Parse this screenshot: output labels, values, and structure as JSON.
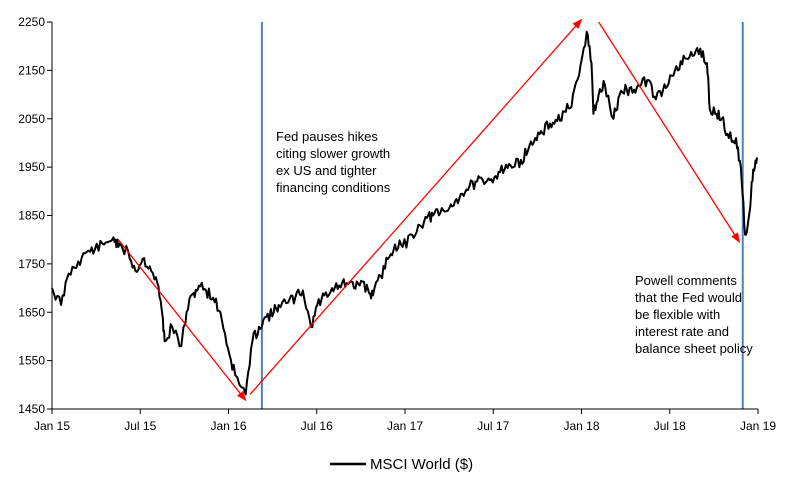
{
  "chart_data": {
    "type": "line",
    "title": "",
    "xlabel": "",
    "ylabel": "",
    "ylim": [
      1450,
      2250
    ],
    "yticks": [
      1450,
      1550,
      1650,
      1750,
      1850,
      1950,
      2050,
      2150,
      2250
    ],
    "xticks": [
      "Jan 15",
      "Jul 15",
      "Jan 16",
      "Jul 16",
      "Jan 17",
      "Jul 17",
      "Jan 18",
      "Jul 18",
      "Jan 19"
    ],
    "x_range": [
      "2015-01-01",
      "2019-01-20"
    ],
    "grid": false,
    "legend_position": "bottom-center",
    "series": [
      {
        "name": "MSCI World ($)",
        "color": "#000000",
        "x": [
          "2015-01-01",
          "2015-01-20",
          "2015-02-05",
          "2015-02-25",
          "2015-03-15",
          "2015-04-01",
          "2015-04-20",
          "2015-05-10",
          "2015-05-20",
          "2015-06-10",
          "2015-06-25",
          "2015-07-10",
          "2015-07-25",
          "2015-08-10",
          "2015-08-21",
          "2015-08-25",
          "2015-09-10",
          "2015-09-29",
          "2015-10-10",
          "2015-10-25",
          "2015-11-05",
          "2015-11-20",
          "2015-12-05",
          "2015-12-20",
          "2016-01-05",
          "2016-01-20",
          "2016-02-11",
          "2016-02-25",
          "2016-03-10",
          "2016-03-25",
          "2016-04-10",
          "2016-04-20",
          "2016-05-10",
          "2016-05-25",
          "2016-06-10",
          "2016-06-27",
          "2016-07-10",
          "2016-07-25",
          "2016-08-10",
          "2016-08-25",
          "2016-09-10",
          "2016-09-25",
          "2016-10-10",
          "2016-10-25",
          "2016-11-04",
          "2016-11-20",
          "2016-12-05",
          "2016-12-20",
          "2017-01-05",
          "2017-01-25",
          "2017-02-10",
          "2017-02-25",
          "2017-03-10",
          "2017-03-25",
          "2017-04-10",
          "2017-04-25",
          "2017-05-10",
          "2017-05-25",
          "2017-06-10",
          "2017-06-25",
          "2017-07-10",
          "2017-07-25",
          "2017-08-10",
          "2017-08-25",
          "2017-09-10",
          "2017-09-25",
          "2017-10-10",
          "2017-10-25",
          "2017-11-10",
          "2017-11-25",
          "2017-12-10",
          "2017-12-25",
          "2018-01-10",
          "2018-01-26",
          "2018-02-05",
          "2018-02-09",
          "2018-02-20",
          "2018-03-05",
          "2018-03-23",
          "2018-04-05",
          "2018-04-20",
          "2018-05-05",
          "2018-05-20",
          "2018-06-05",
          "2018-06-20",
          "2018-07-05",
          "2018-07-20",
          "2018-08-05",
          "2018-08-20",
          "2018-09-05",
          "2018-09-21",
          "2018-10-05",
          "2018-10-11",
          "2018-10-25",
          "2018-11-05",
          "2018-11-20",
          "2018-12-05",
          "2018-12-15",
          "2018-12-24",
          "2019-01-02",
          "2019-01-10",
          "2019-01-18"
        ],
        "values": [
          1700,
          1665,
          1730,
          1755,
          1775,
          1780,
          1790,
          1805,
          1785,
          1775,
          1735,
          1760,
          1745,
          1710,
          1640,
          1590,
          1620,
          1580,
          1650,
          1690,
          1705,
          1695,
          1680,
          1650,
          1575,
          1520,
          1480,
          1590,
          1620,
          1640,
          1650,
          1665,
          1670,
          1680,
          1695,
          1620,
          1665,
          1685,
          1700,
          1705,
          1710,
          1700,
          1715,
          1695,
          1685,
          1725,
          1760,
          1790,
          1785,
          1810,
          1830,
          1845,
          1850,
          1855,
          1860,
          1880,
          1895,
          1910,
          1920,
          1915,
          1925,
          1940,
          1955,
          1950,
          1965,
          1985,
          2010,
          2020,
          2040,
          2045,
          2065,
          2075,
          2140,
          2230,
          2165,
          2060,
          2100,
          2120,
          2050,
          2100,
          2110,
          2110,
          2120,
          2130,
          2090,
          2110,
          2140,
          2150,
          2175,
          2180,
          2195,
          2165,
          2070,
          2060,
          2050,
          2010,
          2010,
          1950,
          1810,
          1855,
          1945,
          1970
        ]
      }
    ],
    "annotations": [
      {
        "lines": [
          "Fed pauses hikes",
          "citing slower growth",
          "ex US and tighter",
          "financing conditions"
        ],
        "vline_date": "2016-03-16"
      },
      {
        "lines": [
          "Powell comments",
          "that the Fed would",
          "be flexible with",
          "interest rate and",
          "balance sheet policy"
        ],
        "vline_date": "2018-12-19"
      }
    ],
    "trend_arrows": [
      {
        "from": [
          "2015-05-20",
          1800
        ],
        "to": [
          "2016-02-11",
          1468
        ]
      },
      {
        "from": [
          "2016-02-20",
          1480
        ],
        "to": [
          "2018-01-15",
          2255
        ]
      },
      {
        "from": [
          "2018-02-20",
          2250
        ],
        "to": [
          "2018-12-12",
          1795
        ]
      }
    ],
    "colors": {
      "line": "#000000",
      "vline": "#4f81bd",
      "arrow": "#ff0000",
      "axis": "#000000"
    }
  }
}
